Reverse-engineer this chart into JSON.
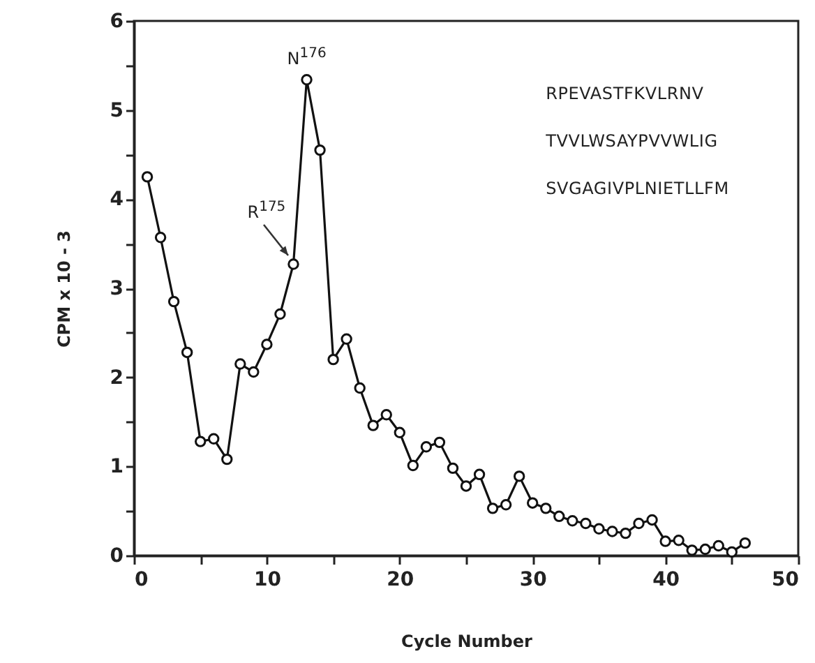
{
  "chart_data": {
    "type": "line",
    "xlabel": "Cycle Number",
    "ylabel": "CPM x 10 - 3",
    "x": [
      1,
      2,
      3,
      4,
      5,
      6,
      7,
      8,
      9,
      10,
      11,
      12,
      13,
      14,
      15,
      16,
      17,
      18,
      19,
      20,
      21,
      22,
      23,
      24,
      25,
      26,
      27,
      28,
      29,
      30,
      31,
      32,
      33,
      34,
      35,
      36,
      37,
      38,
      39,
      40,
      41,
      42,
      43,
      44,
      45,
      46
    ],
    "series": [
      {
        "color": "#111111",
        "values": [
          4.25,
          3.57,
          2.85,
          2.28,
          1.28,
          1.31,
          1.08,
          2.15,
          2.06,
          2.37,
          2.71,
          3.27,
          5.34,
          4.55,
          2.2,
          2.43,
          1.88,
          1.46,
          1.58,
          1.38,
          1.01,
          1.22,
          1.27,
          0.98,
          0.78,
          0.91,
          0.53,
          0.57,
          0.89,
          0.59,
          0.53,
          0.44,
          0.39,
          0.36,
          0.3,
          0.27,
          0.25,
          0.36,
          0.4,
          0.16,
          0.17,
          0.06,
          0.07,
          0.11,
          0.04,
          0.14
        ]
      }
    ],
    "xlim": [
      0,
      50
    ],
    "xticks": [
      0,
      {
        "value": 5,
        "label": null
      },
      10,
      {
        "value": 15,
        "label": null
      },
      20,
      {
        "value": 25,
        "label": null
      },
      30,
      {
        "value": 35,
        "label": null
      },
      40,
      {
        "value": 45,
        "label": null
      },
      50
    ],
    "ylim": [
      0,
      6
    ],
    "yticks": [
      0,
      {
        "value": 0.5,
        "label": null
      },
      1,
      {
        "value": 1.5,
        "label": null
      },
      2,
      {
        "value": 2.5,
        "label": null
      },
      3,
      {
        "value": 3.5,
        "label": null
      },
      4,
      {
        "value": 4.5,
        "label": null
      },
      5,
      {
        "value": 5.5,
        "label": null
      },
      6
    ],
    "marker": "circle",
    "line_style": "solid",
    "grid": false,
    "annotations": [
      {
        "text": "N$^{176}$",
        "x": 13,
        "y": 5.34
      },
      {
        "text": "R$^{175}$",
        "x": 12,
        "y": 3.27
      },
      "RPEVASTFKVLRNV",
      "TVVLWSAYPVVWLIG",
      "SVGAGIVPLNIETLLFM"
    ]
  }
}
